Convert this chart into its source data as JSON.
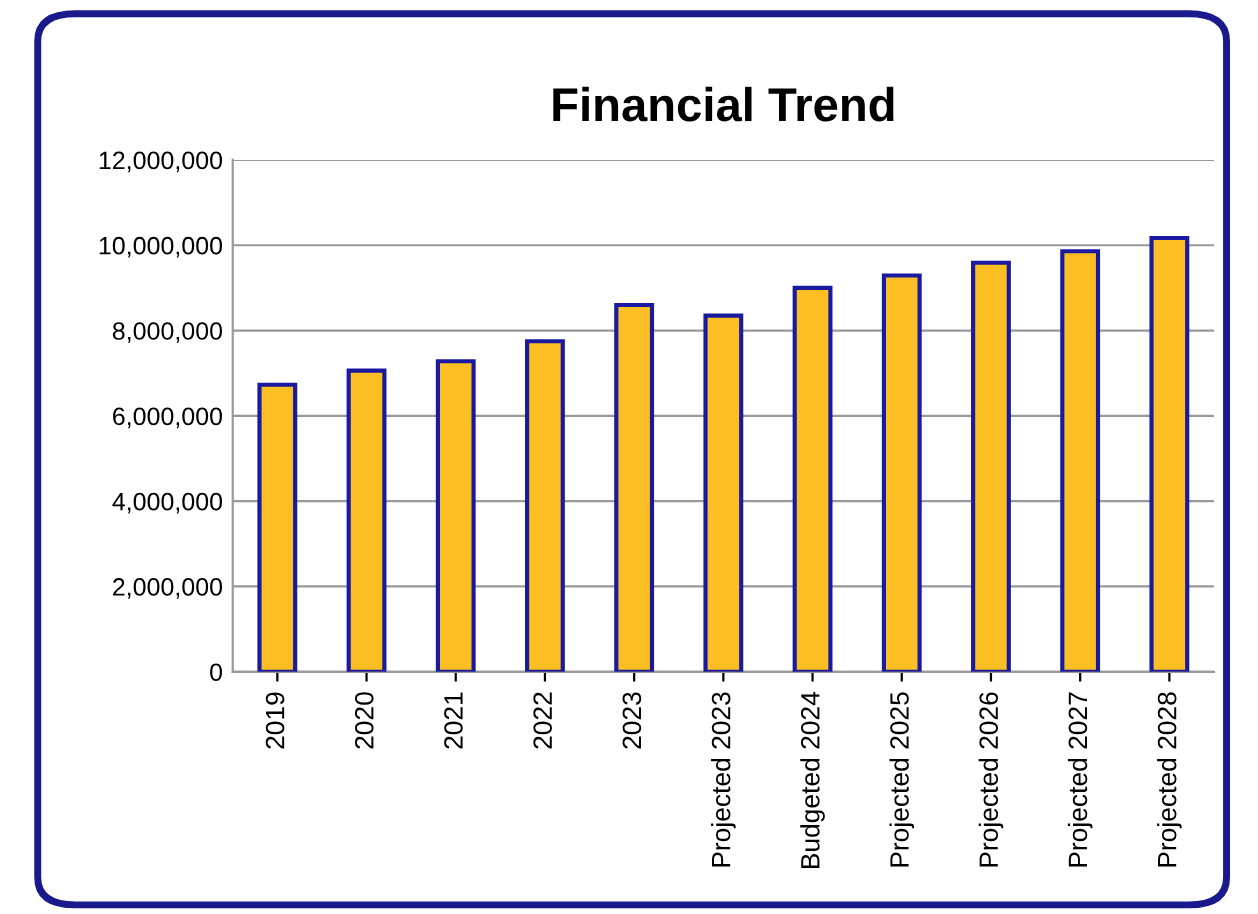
{
  "chart_data": {
    "type": "bar",
    "title": "Financial Trend",
    "categories": [
      "2019",
      "2020",
      "2021",
      "2022",
      "2023",
      "Projected 2023",
      "Budgeted 2024",
      "Projected 2025",
      "Projected 2026",
      "Projected 2027",
      "Projected 2028"
    ],
    "values": [
      6730000,
      7060000,
      7280000,
      7750000,
      8600000,
      8350000,
      9000000,
      9290000,
      9590000,
      9860000,
      10170000
    ],
    "color": "#fbbf24",
    "ylim": [
      0,
      12000000
    ],
    "yticks": [
      {
        "value": 0,
        "label": "0"
      },
      {
        "value": 2000000,
        "label": "2,000,000"
      },
      {
        "value": 4000000,
        "label": "4,000,000"
      },
      {
        "value": 6000000,
        "label": "6,000,000"
      },
      {
        "value": 8000000,
        "label": "8,000,000"
      },
      {
        "value": 10000000,
        "label": "10,000,000"
      },
      {
        "value": 12000000,
        "label": "12,000,000"
      }
    ],
    "grid": "y",
    "legend": false
  }
}
